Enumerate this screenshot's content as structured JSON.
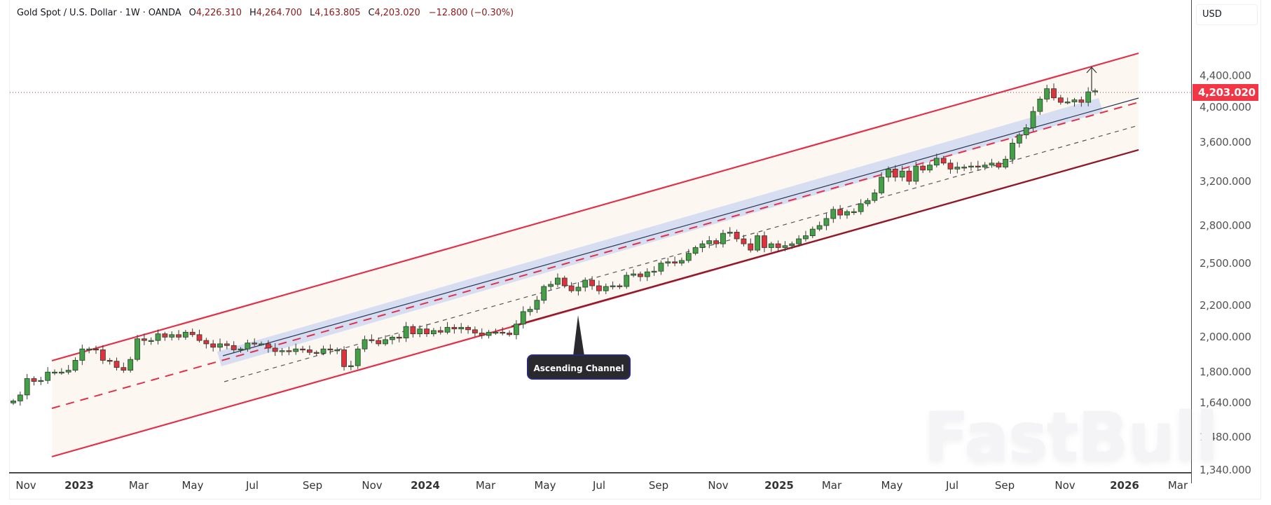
{
  "header": {
    "symbol": "Gold Spot / U.S. Dollar · 1W · OANDA",
    "open_label": "O",
    "open": "4,226.310",
    "high_label": "H",
    "high": "4,264.700",
    "low_label": "L",
    "low": "4,163.805",
    "close_label": "C",
    "close": "4,203.020",
    "change": "−12.800 (−0.30%)"
  },
  "currency_button": "USD",
  "current_price_label": "4,203.020",
  "annotation": {
    "text": "Ascending Channel"
  },
  "watermark": "FastBull",
  "colors": {
    "up": "#43a047",
    "down": "#e0313f",
    "channel": "#e0314b",
    "channel_lower": "#8b1a2b",
    "fill": "#fdf7f1",
    "highlight": "#c9d6f2",
    "price_badge": "#f23645"
  },
  "chart_data": {
    "type": "candlestick",
    "title": "Gold Spot / U.S. Dollar · 1W · OANDA",
    "xlabel": "",
    "ylabel": "USD",
    "y_scale": "log",
    "ylim": [
      1340,
      4600
    ],
    "y_ticks": [
      "4,400.000",
      "4,000.000",
      "3,600.000",
      "3,200.000",
      "2,800.000",
      "2,500.000",
      "2,200.000",
      "2,000.000",
      "1,800.000",
      "1,640.000",
      "1,480.000",
      "1,340.000"
    ],
    "y_tick_values": [
      4400,
      4000,
      3600,
      3200,
      2800,
      2500,
      2200,
      2000,
      1800,
      1640,
      1480,
      1340
    ],
    "x_ticks": [
      "Nov",
      "2023",
      "Mar",
      "May",
      "Jul",
      "Sep",
      "Nov",
      "2024",
      "Mar",
      "May",
      "Jul",
      "Sep",
      "Nov",
      "2025",
      "Mar",
      "May",
      "Jul",
      "Sep",
      "Nov",
      "2026",
      "Mar"
    ],
    "last_price": 4203.02,
    "annotations": [
      "Ascending Channel"
    ],
    "channel": {
      "upper": {
        "start": [
          74,
          515
        ],
        "end": [
          1625,
          76
        ]
      },
      "mid_dashed": {
        "start": [
          74,
          583
        ],
        "end": [
          1625,
          146
        ]
      },
      "lower": {
        "start": [
          74,
          652
        ],
        "end": [
          1625,
          214
        ]
      },
      "inner_solid": {
        "start": [
          318,
          508
        ],
        "end": [
          1625,
          140
        ]
      },
      "inner_gray_dashed": {
        "start": [
          320,
          545
        ],
        "end": [
          1625,
          179
        ]
      }
    },
    "ohlc_closes": [
      1650,
      1680,
      1765,
      1750,
      1755,
      1800,
      1800,
      1800,
      1810,
      1865,
      1930,
      1930,
      1925,
      1865,
      1860,
      1825,
      1810,
      1870,
      1990,
      1980,
      1980,
      2020,
      2000,
      2015,
      2000,
      2030,
      2015,
      1980,
      1960,
      1940,
      1960,
      1950,
      1925,
      1930,
      1965,
      1960,
      1960,
      1935,
      1915,
      1920,
      1915,
      1930,
      1925,
      1910,
      1905,
      1930,
      1925,
      1925,
      1830,
      1835,
      1930,
      1985,
      1980,
      1960,
      1985,
      2000,
      1995,
      2065,
      2020,
      2050,
      2020,
      2040,
      2030,
      2060,
      2050,
      2060,
      2045,
      2025,
      2010,
      2030,
      2030,
      2025,
      2015,
      2080,
      2160,
      2175,
      2235,
      2330,
      2345,
      2390,
      2335,
      2300,
      2325,
      2375,
      2335,
      2300,
      2330,
      2335,
      2330,
      2410,
      2420,
      2400,
      2435,
      2440,
      2500,
      2510,
      2500,
      2520,
      2575,
      2620,
      2650,
      2675,
      2650,
      2735,
      2745,
      2690,
      2650,
      2600,
      2715,
      2620,
      2650,
      2620,
      2635,
      2650,
      2690,
      2715,
      2770,
      2800,
      2860,
      2940,
      2890,
      2920,
      2920,
      2990,
      3020,
      3090,
      3240,
      3320,
      3240,
      3300,
      3200,
      3350,
      3310,
      3360,
      3430,
      3380,
      3320,
      3340,
      3340,
      3350,
      3340,
      3360,
      3380,
      3340,
      3420,
      3590,
      3680,
      3760,
      3950,
      4100,
      4230,
      4115,
      4060,
      4065,
      4090,
      4060,
      4190,
      4203
    ]
  }
}
